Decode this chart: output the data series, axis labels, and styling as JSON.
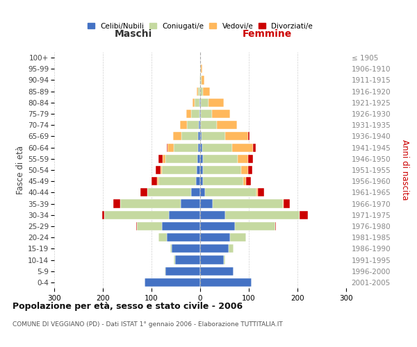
{
  "age_groups": [
    "100+",
    "95-99",
    "90-94",
    "85-89",
    "80-84",
    "75-79",
    "70-74",
    "65-69",
    "60-64",
    "55-59",
    "50-54",
    "45-49",
    "40-44",
    "35-39",
    "30-34",
    "25-29",
    "20-24",
    "15-19",
    "10-14",
    "5-9",
    "0-4"
  ],
  "birth_years": [
    "≤ 1905",
    "1906-1910",
    "1911-1915",
    "1916-1920",
    "1921-1925",
    "1926-1930",
    "1931-1935",
    "1936-1940",
    "1941-1945",
    "1946-1950",
    "1951-1955",
    "1956-1960",
    "1961-1965",
    "1966-1970",
    "1971-1975",
    "1976-1980",
    "1981-1985",
    "1986-1990",
    "1991-1995",
    "1996-2000",
    "2001-2005"
  ],
  "males": {
    "celibe": [
      0,
      0,
      0,
      0,
      1,
      2,
      3,
      4,
      5,
      6,
      7,
      8,
      18,
      40,
      65,
      78,
      68,
      58,
      52,
      72,
      115
    ],
    "coniugato": [
      0,
      0,
      2,
      5,
      10,
      16,
      24,
      34,
      50,
      65,
      72,
      78,
      90,
      125,
      132,
      52,
      18,
      4,
      2,
      1,
      0
    ],
    "vedovo": [
      0,
      0,
      0,
      2,
      5,
      10,
      14,
      18,
      12,
      6,
      3,
      2,
      1,
      0,
      0,
      0,
      0,
      0,
      0,
      0,
      0
    ],
    "divorziato": [
      0,
      0,
      0,
      0,
      0,
      0,
      0,
      0,
      2,
      9,
      9,
      12,
      14,
      14,
      5,
      2,
      0,
      0,
      0,
      0,
      0
    ]
  },
  "females": {
    "nubile": [
      0,
      0,
      0,
      0,
      1,
      2,
      2,
      3,
      4,
      5,
      6,
      6,
      10,
      25,
      52,
      72,
      62,
      58,
      48,
      68,
      105
    ],
    "coniugata": [
      0,
      2,
      3,
      6,
      16,
      22,
      32,
      48,
      62,
      72,
      78,
      82,
      105,
      145,
      152,
      82,
      32,
      10,
      3,
      1,
      0
    ],
    "vedova": [
      0,
      2,
      5,
      14,
      32,
      38,
      42,
      48,
      42,
      22,
      14,
      6,
      3,
      1,
      0,
      0,
      0,
      0,
      0,
      0,
      0
    ],
    "divorziata": [
      0,
      0,
      0,
      0,
      0,
      0,
      0,
      2,
      6,
      10,
      9,
      10,
      13,
      13,
      18,
      2,
      0,
      0,
      0,
      0,
      0
    ]
  },
  "colors": {
    "celibe": "#4472C4",
    "coniugato": "#C5D9A0",
    "vedovo": "#FFB85C",
    "divorziato": "#CC0000"
  },
  "legend_labels": [
    "Celibi/Nubili",
    "Coniugati/e",
    "Vedovi/e",
    "Divorziati/e"
  ],
  "title": "Popolazione per età, sesso e stato civile - 2006",
  "subtitle": "COMUNE DI VEGGIANO (PD) - Dati ISTAT 1° gennaio 2006 - Elaborazione TUTTITALIA.IT",
  "label_maschi": "Maschi",
  "label_femmine": "Femmine",
  "ylabel_left": "Fasce di età",
  "ylabel_right": "Anni di nascita",
  "xlim": 300,
  "bg": "#ffffff",
  "grid_color": "#cccccc"
}
